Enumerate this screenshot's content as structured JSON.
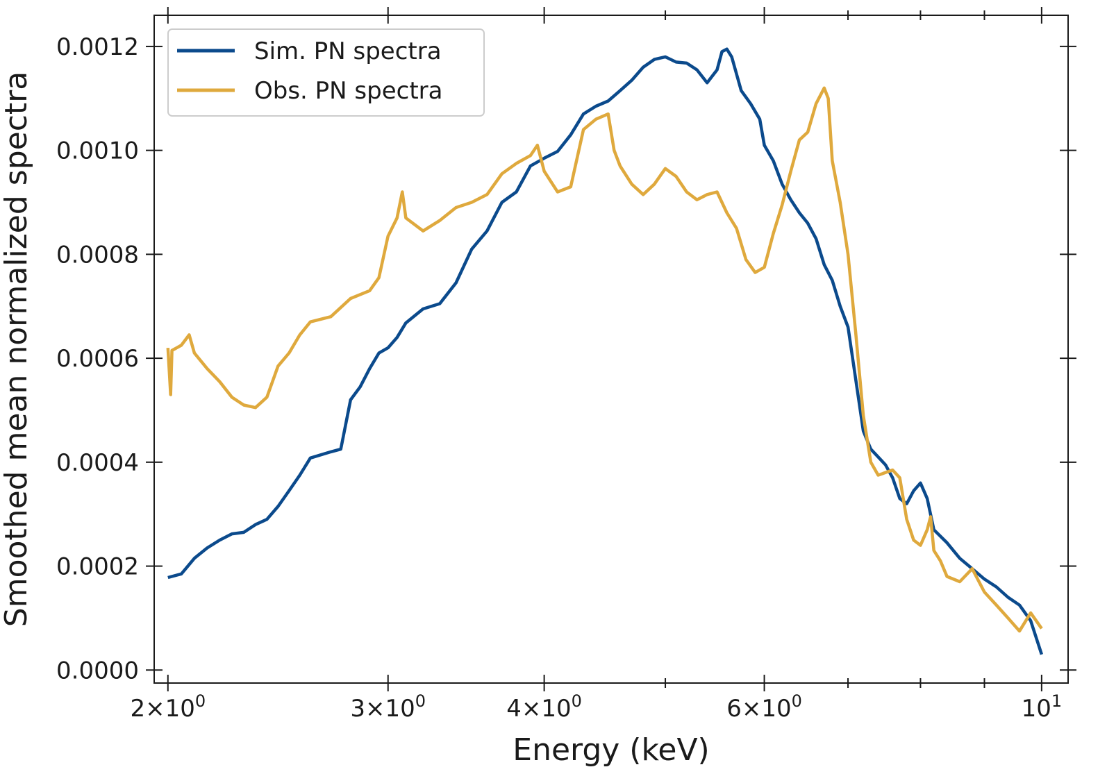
{
  "chart_data": {
    "type": "line",
    "title": "",
    "xlabel": "Energy (keV)",
    "ylabel": "Smoothed mean normalized spectra",
    "xscale": "log",
    "xlim": [
      1.95,
      10.5
    ],
    "ylim": [
      -2.5e-05,
      0.00126
    ],
    "grid": false,
    "legend_position": "top-left",
    "x_ticks": [
      {
        "value": 2,
        "base": "2×10",
        "exp": "0"
      },
      {
        "value": 3,
        "base": "3×10",
        "exp": "0"
      },
      {
        "value": 4,
        "base": "4×10",
        "exp": "0"
      },
      {
        "value": 6,
        "base": "6×10",
        "exp": "0"
      },
      {
        "value": 10,
        "base": "10",
        "exp": "1"
      }
    ],
    "x_minor_ticks": [
      5,
      7,
      8,
      9
    ],
    "y_ticks": [
      {
        "value": 0.0,
        "label": "0.0000"
      },
      {
        "value": 0.0002,
        "label": "0.0002"
      },
      {
        "value": 0.0004,
        "label": "0.0004"
      },
      {
        "value": 0.0006,
        "label": "0.0006"
      },
      {
        "value": 0.0008,
        "label": "0.0008"
      },
      {
        "value": 0.001,
        "label": "0.0010"
      },
      {
        "value": 0.0012,
        "label": "0.0012"
      }
    ],
    "series": [
      {
        "name": "Sim. PN spectra",
        "color": "#0b4a8c",
        "points": [
          [
            2.0,
            0.000178
          ],
          [
            2.05,
            0.000185
          ],
          [
            2.1,
            0.000215
          ],
          [
            2.15,
            0.000235
          ],
          [
            2.2,
            0.00025
          ],
          [
            2.25,
            0.000262
          ],
          [
            2.3,
            0.000265
          ],
          [
            2.35,
            0.00028
          ],
          [
            2.4,
            0.00029
          ],
          [
            2.45,
            0.000315
          ],
          [
            2.5,
            0.000345
          ],
          [
            2.55,
            0.000375
          ],
          [
            2.6,
            0.000408
          ],
          [
            2.7,
            0.00042
          ],
          [
            2.75,
            0.000425
          ],
          [
            2.8,
            0.00052
          ],
          [
            2.85,
            0.000545
          ],
          [
            2.9,
            0.00058
          ],
          [
            2.95,
            0.00061
          ],
          [
            3.0,
            0.00062
          ],
          [
            3.05,
            0.00064
          ],
          [
            3.1,
            0.000668
          ],
          [
            3.2,
            0.000695
          ],
          [
            3.3,
            0.000705
          ],
          [
            3.4,
            0.000745
          ],
          [
            3.5,
            0.00081
          ],
          [
            3.6,
            0.000845
          ],
          [
            3.7,
            0.0009
          ],
          [
            3.8,
            0.00092
          ],
          [
            3.9,
            0.00097
          ],
          [
            4.0,
            0.000985
          ],
          [
            4.1,
            0.000998
          ],
          [
            4.2,
            0.00103
          ],
          [
            4.3,
            0.00107
          ],
          [
            4.4,
            0.001085
          ],
          [
            4.5,
            0.001095
          ],
          [
            4.6,
            0.001115
          ],
          [
            4.7,
            0.001135
          ],
          [
            4.8,
            0.00116
          ],
          [
            4.9,
            0.001175
          ],
          [
            5.0,
            0.00118
          ],
          [
            5.1,
            0.00117
          ],
          [
            5.2,
            0.001168
          ],
          [
            5.3,
            0.001155
          ],
          [
            5.4,
            0.00113
          ],
          [
            5.5,
            0.001155
          ],
          [
            5.55,
            0.00119
          ],
          [
            5.6,
            0.001195
          ],
          [
            5.65,
            0.00118
          ],
          [
            5.75,
            0.001115
          ],
          [
            5.85,
            0.00109
          ],
          [
            5.95,
            0.00106
          ],
          [
            6.0,
            0.00101
          ],
          [
            6.1,
            0.00098
          ],
          [
            6.2,
            0.000935
          ],
          [
            6.3,
            0.000905
          ],
          [
            6.4,
            0.00088
          ],
          [
            6.5,
            0.00086
          ],
          [
            6.6,
            0.00083
          ],
          [
            6.7,
            0.00078
          ],
          [
            6.8,
            0.00075
          ],
          [
            6.9,
            0.0007
          ],
          [
            7.0,
            0.00066
          ],
          [
            7.1,
            0.00056
          ],
          [
            7.2,
            0.00046
          ],
          [
            7.3,
            0.000425
          ],
          [
            7.4,
            0.00041
          ],
          [
            7.5,
            0.000395
          ],
          [
            7.6,
            0.00037
          ],
          [
            7.7,
            0.00033
          ],
          [
            7.8,
            0.00032
          ],
          [
            7.9,
            0.000345
          ],
          [
            8.0,
            0.00036
          ],
          [
            8.1,
            0.00033
          ],
          [
            8.2,
            0.00027
          ],
          [
            8.4,
            0.000245
          ],
          [
            8.6,
            0.000215
          ],
          [
            8.8,
            0.000195
          ],
          [
            9.0,
            0.000175
          ],
          [
            9.2,
            0.00016
          ],
          [
            9.4,
            0.00014
          ],
          [
            9.6,
            0.000125
          ],
          [
            9.8,
            9.5e-05
          ],
          [
            10.0,
            3e-05
          ]
        ]
      },
      {
        "name": "Obs. PN spectra",
        "color": "#dfa93d",
        "points": [
          [
            2.0,
            0.00062
          ],
          [
            2.01,
            0.00053
          ],
          [
            2.015,
            0.000615
          ],
          [
            2.05,
            0.000625
          ],
          [
            2.08,
            0.000645
          ],
          [
            2.1,
            0.00061
          ],
          [
            2.15,
            0.00058
          ],
          [
            2.2,
            0.000555
          ],
          [
            2.25,
            0.000525
          ],
          [
            2.3,
            0.00051
          ],
          [
            2.35,
            0.000505
          ],
          [
            2.4,
            0.000525
          ],
          [
            2.45,
            0.000585
          ],
          [
            2.5,
            0.00061
          ],
          [
            2.55,
            0.000645
          ],
          [
            2.6,
            0.00067
          ],
          [
            2.7,
            0.00068
          ],
          [
            2.8,
            0.000715
          ],
          [
            2.9,
            0.00073
          ],
          [
            2.95,
            0.000755
          ],
          [
            3.0,
            0.000835
          ],
          [
            3.05,
            0.00087
          ],
          [
            3.08,
            0.00092
          ],
          [
            3.1,
            0.00087
          ],
          [
            3.2,
            0.000845
          ],
          [
            3.3,
            0.000865
          ],
          [
            3.4,
            0.00089
          ],
          [
            3.5,
            0.0009
          ],
          [
            3.6,
            0.000915
          ],
          [
            3.7,
            0.000955
          ],
          [
            3.8,
            0.000975
          ],
          [
            3.9,
            0.00099
          ],
          [
            3.95,
            0.00101
          ],
          [
            4.0,
            0.00096
          ],
          [
            4.1,
            0.00092
          ],
          [
            4.2,
            0.00093
          ],
          [
            4.3,
            0.00104
          ],
          [
            4.4,
            0.00106
          ],
          [
            4.5,
            0.00107
          ],
          [
            4.55,
            0.001
          ],
          [
            4.6,
            0.00097
          ],
          [
            4.7,
            0.000935
          ],
          [
            4.8,
            0.000915
          ],
          [
            4.9,
            0.000935
          ],
          [
            5.0,
            0.000965
          ],
          [
            5.1,
            0.00095
          ],
          [
            5.2,
            0.00092
          ],
          [
            5.3,
            0.000905
          ],
          [
            5.4,
            0.000915
          ],
          [
            5.5,
            0.00092
          ],
          [
            5.6,
            0.00088
          ],
          [
            5.7,
            0.00085
          ],
          [
            5.8,
            0.00079
          ],
          [
            5.9,
            0.000765
          ],
          [
            6.0,
            0.000775
          ],
          [
            6.1,
            0.00084
          ],
          [
            6.2,
            0.000895
          ],
          [
            6.3,
            0.00096
          ],
          [
            6.4,
            0.00102
          ],
          [
            6.5,
            0.001035
          ],
          [
            6.6,
            0.00109
          ],
          [
            6.7,
            0.00112
          ],
          [
            6.75,
            0.0011
          ],
          [
            6.8,
            0.00098
          ],
          [
            6.9,
            0.0009
          ],
          [
            7.0,
            0.0008
          ],
          [
            7.1,
            0.00065
          ],
          [
            7.2,
            0.00049
          ],
          [
            7.3,
            0.0004
          ],
          [
            7.4,
            0.000375
          ],
          [
            7.5,
            0.00038
          ],
          [
            7.6,
            0.000385
          ],
          [
            7.7,
            0.00037
          ],
          [
            7.8,
            0.00029
          ],
          [
            7.9,
            0.00025
          ],
          [
            8.0,
            0.00024
          ],
          [
            8.1,
            0.00027
          ],
          [
            8.15,
            0.000295
          ],
          [
            8.2,
            0.00023
          ],
          [
            8.3,
            0.00021
          ],
          [
            8.4,
            0.00018
          ],
          [
            8.6,
            0.00017
          ],
          [
            8.8,
            0.000195
          ],
          [
            9.0,
            0.00015
          ],
          [
            9.2,
            0.000125
          ],
          [
            9.4,
            0.0001
          ],
          [
            9.6,
            7.5e-05
          ],
          [
            9.8,
            0.00011
          ],
          [
            10.0,
            8e-05
          ]
        ]
      }
    ]
  }
}
